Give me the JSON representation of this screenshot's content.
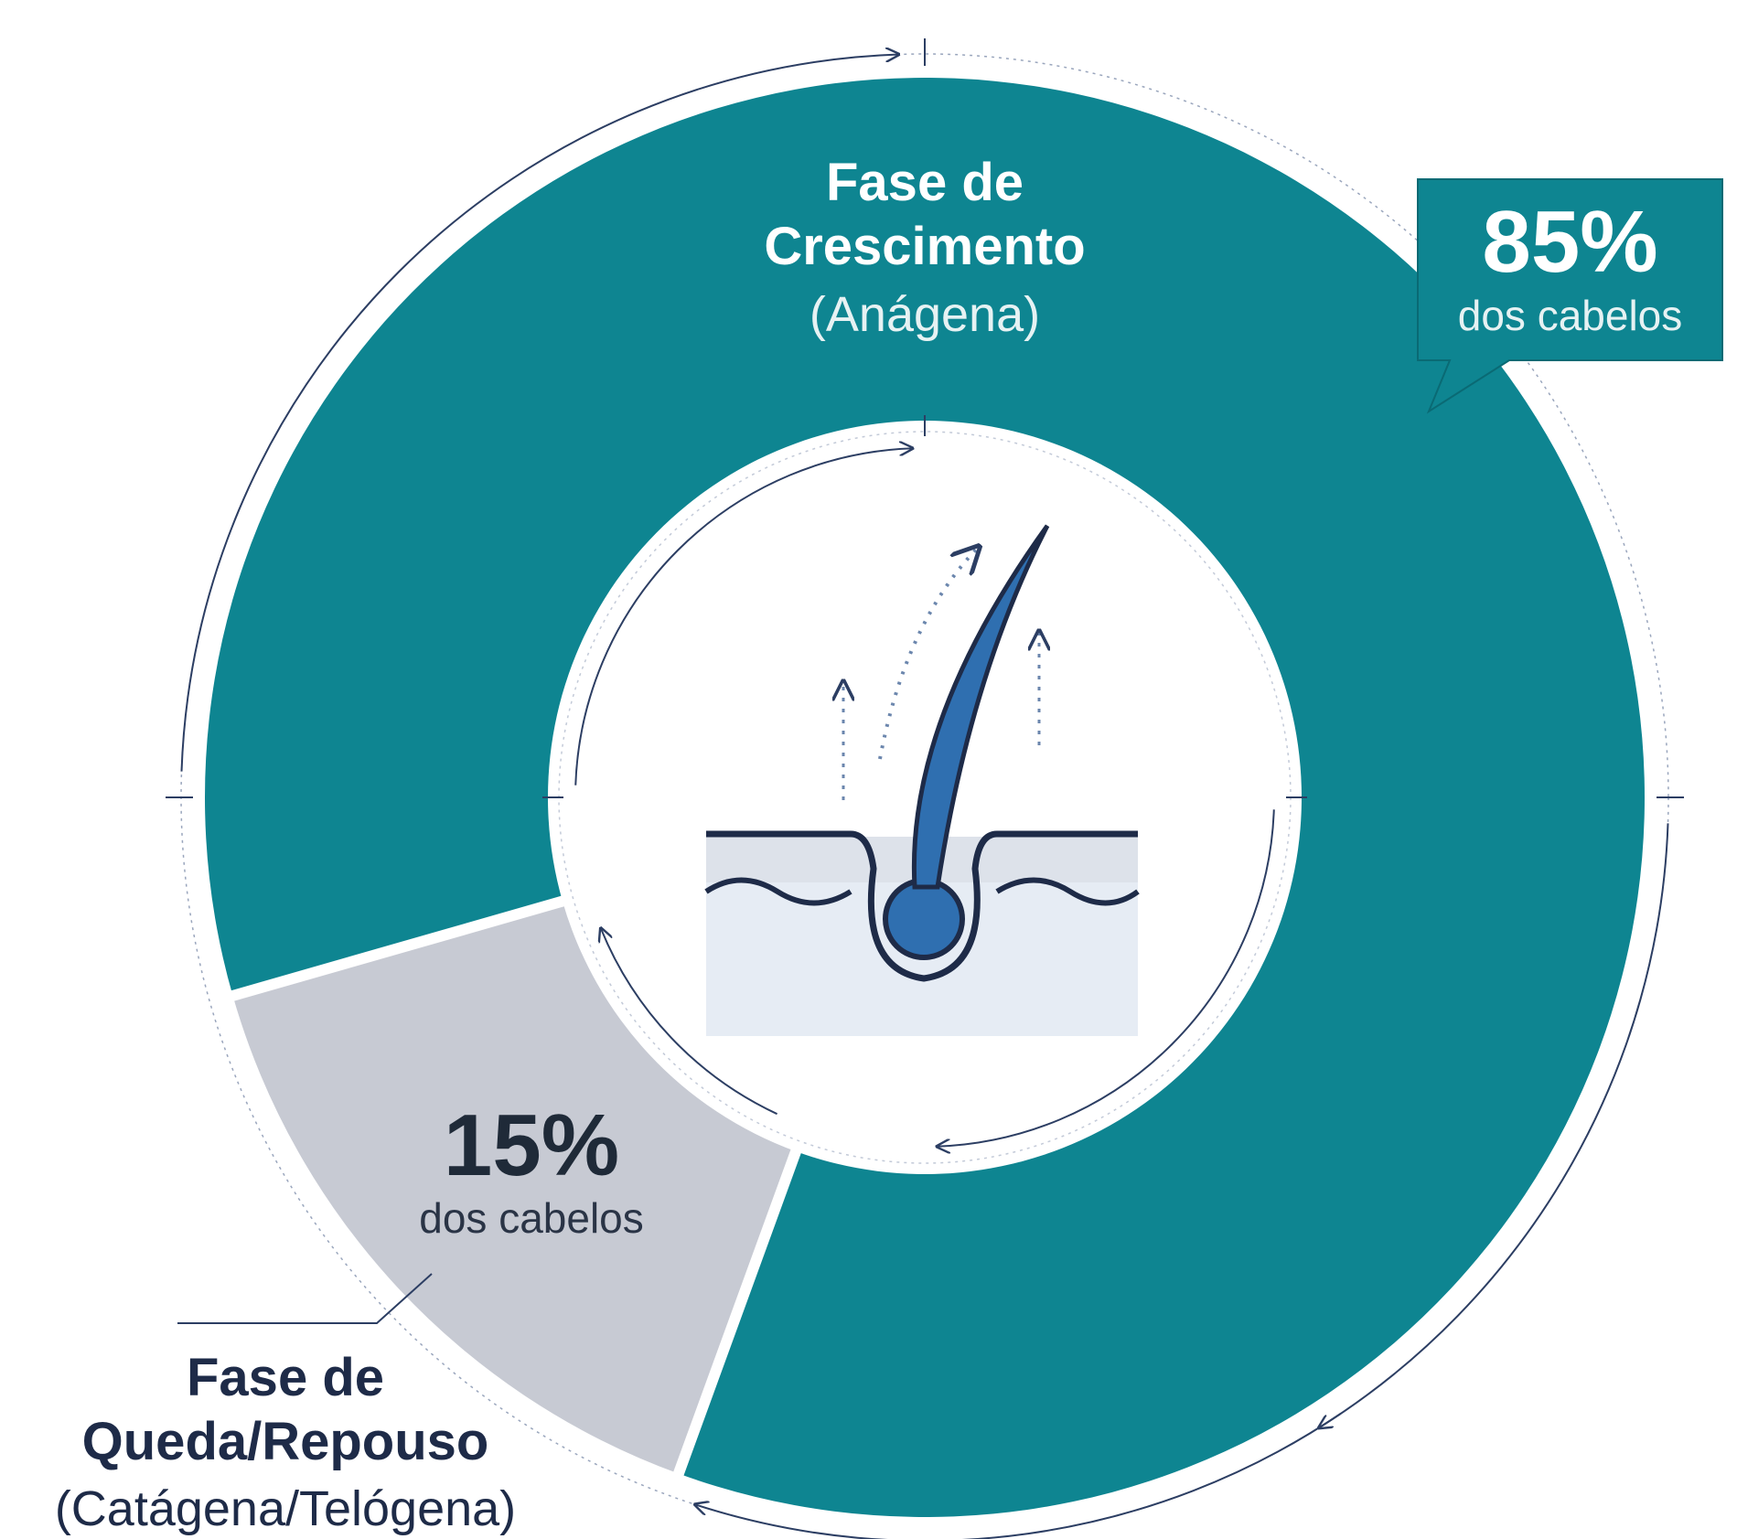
{
  "chart_data": {
    "type": "donut",
    "categories": [
      "Fase de Crescimento",
      "Fase de Queda/Repouso"
    ],
    "category_notes": [
      "(Anágena)",
      "(Catágena/Telógena)"
    ],
    "values": [
      85,
      15
    ],
    "value_labels": [
      "85%",
      "15%"
    ],
    "value_notes": [
      "dos cabelos",
      "dos cabelos"
    ],
    "colors": [
      "#0e8591",
      "#c7cad3"
    ]
  }
}
